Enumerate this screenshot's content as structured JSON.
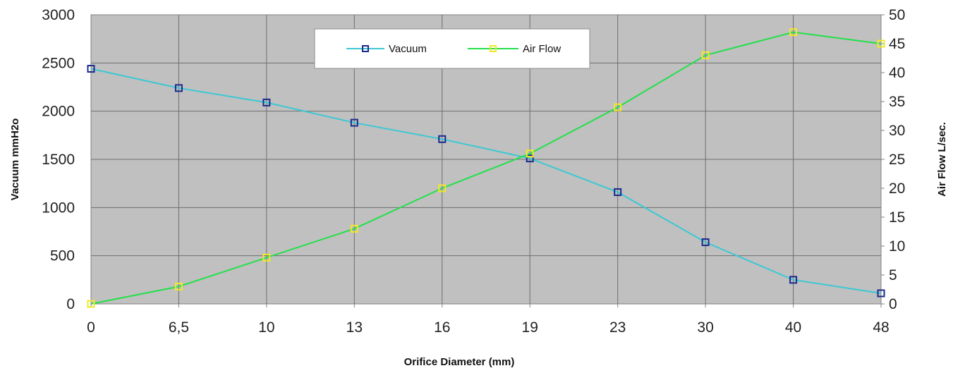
{
  "chart_data": {
    "type": "line",
    "xlabel": "Orifice Diameter (mm)",
    "categories": [
      "0",
      "6,5",
      "10",
      "13",
      "16",
      "19",
      "23",
      "30",
      "40",
      "48"
    ],
    "y_left": {
      "label": "Vacuum mmH2o",
      "min": 0,
      "max": 3000,
      "step": 500
    },
    "y_right": {
      "label": "Air Flow L/sec.",
      "min": 0,
      "max": 50,
      "step": 5
    },
    "grid": true,
    "legend_position": "top-center",
    "series": [
      {
        "name": "Vacuum",
        "axis": "left",
        "color": "#3cc8d2",
        "marker_color": "#1c2a8c",
        "values": [
          2440,
          2240,
          2090,
          1880,
          1710,
          1510,
          1160,
          640,
          250,
          110
        ]
      },
      {
        "name": "Air Flow",
        "axis": "right",
        "color": "#22e04a",
        "marker_color": "#f0e826",
        "values": [
          0,
          3,
          8,
          13,
          20,
          26,
          34,
          43,
          47,
          45
        ]
      }
    ]
  }
}
